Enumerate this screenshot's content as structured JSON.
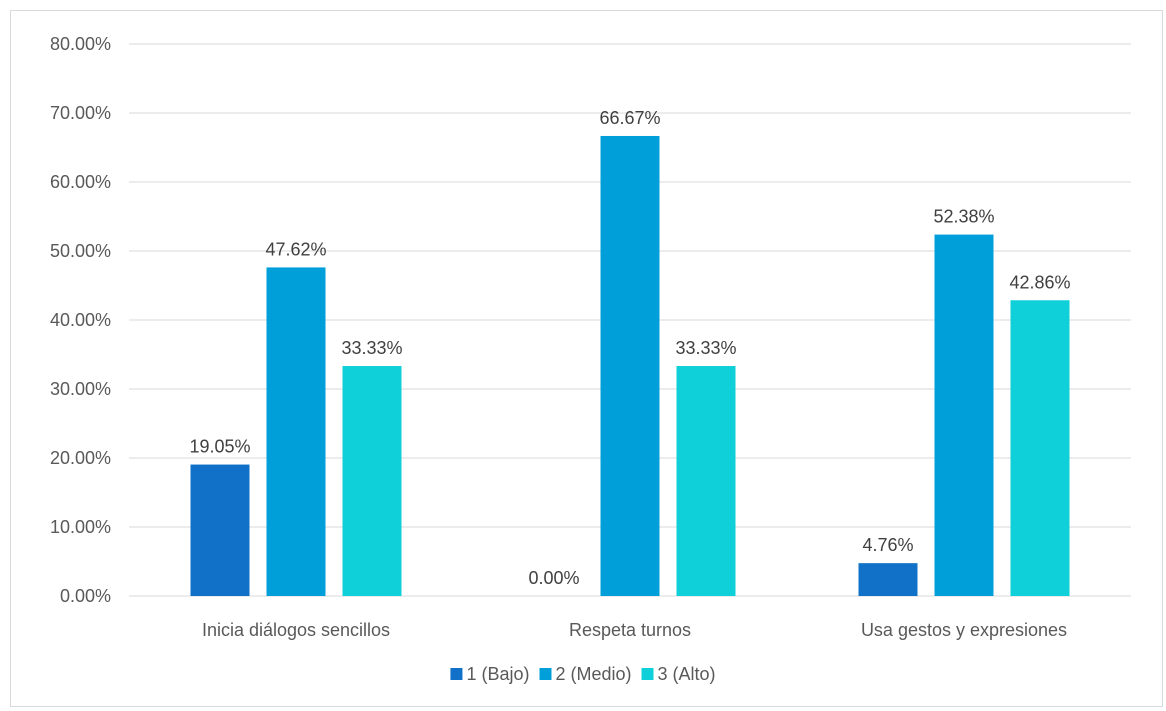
{
  "chart_data": {
    "type": "bar",
    "categories": [
      "Inicia diálogos sencillos",
      "Respeta turnos",
      "Usa gestos y expresiones"
    ],
    "series": [
      {
        "name": "1 (Bajo)",
        "color": "#1170c8",
        "values": [
          19.05,
          0.0,
          4.76
        ]
      },
      {
        "name": "2 (Medio)",
        "color": "#009fd9",
        "values": [
          47.62,
          66.67,
          52.38
        ]
      },
      {
        "name": "3 (Alto)",
        "color": "#0fd0d8",
        "values": [
          33.33,
          33.33,
          42.86
        ]
      }
    ],
    "data_labels": [
      [
        "19.05%",
        "0.00%",
        "4.76%"
      ],
      [
        "47.62%",
        "66.67%",
        "52.38%"
      ],
      [
        "33.33%",
        "33.33%",
        "42.86%"
      ]
    ],
    "ylim": [
      0,
      80
    ],
    "ytick_values": [
      0,
      10,
      20,
      30,
      40,
      50,
      60,
      70,
      80
    ],
    "ytick_labels": [
      "0.00%",
      "10.00%",
      "20.00%",
      "30.00%",
      "40.00%",
      "50.00%",
      "60.00%",
      "70.00%",
      "80.00%"
    ],
    "grid": true,
    "legend_position": "bottom",
    "title": "",
    "xlabel": "",
    "ylabel": ""
  }
}
